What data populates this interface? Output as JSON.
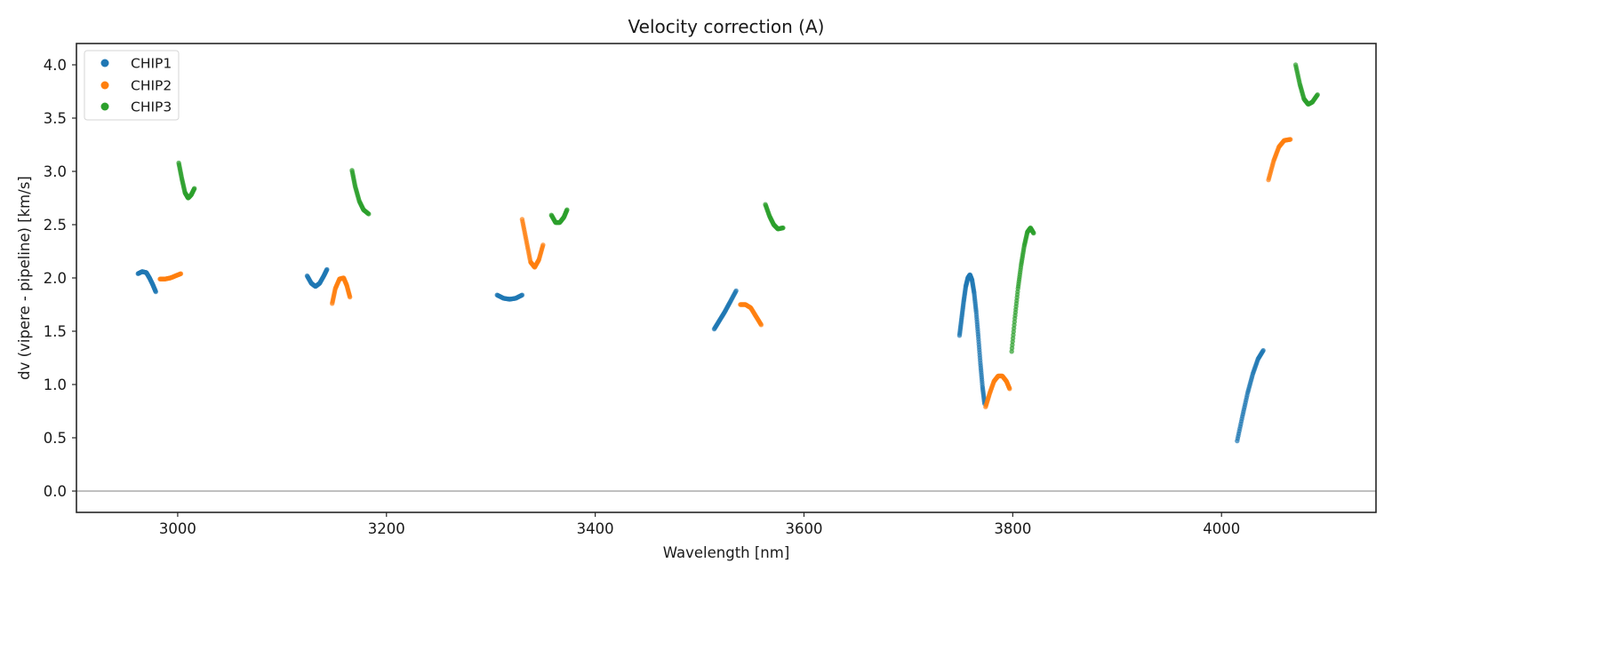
{
  "chart_data": {
    "type": "scatter",
    "title": "Velocity correction (A)",
    "xlabel": "Wavelength [nm]",
    "ylabel": "dv (vipere - pipeline) [km/s]",
    "xlim": [
      2903,
      4148
    ],
    "ylim": [
      -0.2,
      4.2
    ],
    "xticks": [
      3000,
      3200,
      3400,
      3600,
      3800,
      4000
    ],
    "xtick_labels": [
      "3000",
      "3200",
      "3400",
      "3600",
      "3800",
      "4000"
    ],
    "yticks": [
      0.0,
      0.5,
      1.0,
      1.5,
      2.0,
      2.5,
      3.0,
      3.5,
      4.0
    ],
    "ytick_labels": [
      "0.0",
      "0.5",
      "1.0",
      "1.5",
      "2.0",
      "2.5",
      "3.0",
      "3.5",
      "4.0"
    ],
    "grid": false,
    "reference_line_y": 0.0,
    "legend": {
      "placement": "upper-left",
      "entries": [
        "CHIP1",
        "CHIP2",
        "CHIP3"
      ]
    },
    "series": [
      {
        "name": "CHIP1",
        "color": "#1f77b4",
        "segments": [
          {
            "x": [
              2962,
              2966,
              2970,
              2973,
              2976,
              2979
            ],
            "y": [
              2.04,
              2.06,
              2.05,
              2.0,
              1.94,
              1.87
            ]
          },
          {
            "x": [
              3124,
              3128,
              3132,
              3136,
              3140,
              3143
            ],
            "y": [
              2.02,
              1.95,
              1.92,
              1.95,
              2.02,
              2.08
            ]
          },
          {
            "x": [
              3306,
              3312,
              3318,
              3324,
              3330
            ],
            "y": [
              1.84,
              1.81,
              1.8,
              1.81,
              1.84
            ]
          },
          {
            "x": [
              3514,
              3519,
              3524,
              3529,
              3535
            ],
            "y": [
              1.52,
              1.6,
              1.68,
              1.77,
              1.88
            ]
          },
          {
            "x": [
              3749,
              3751,
              3753,
              3755,
              3757,
              3759,
              3761,
              3763,
              3765,
              3767,
              3769,
              3771,
              3773
            ],
            "y": [
              1.46,
              1.62,
              1.78,
              1.92,
              2.0,
              2.03,
              1.98,
              1.86,
              1.68,
              1.45,
              1.2,
              0.98,
              0.82
            ]
          },
          {
            "x": [
              4015,
              4020,
              4025,
              4030,
              4035,
              4040
            ],
            "y": [
              0.47,
              0.7,
              0.92,
              1.1,
              1.24,
              1.32
            ]
          }
        ]
      },
      {
        "name": "CHIP2",
        "color": "#ff7f0e",
        "segments": [
          {
            "x": [
              2983,
              2988,
              2993,
              2998,
              3003
            ],
            "y": [
              1.99,
              1.99,
              2.0,
              2.02,
              2.04
            ]
          },
          {
            "x": [
              3148,
              3151,
              3155,
              3159,
              3162,
              3165
            ],
            "y": [
              1.76,
              1.9,
              1.99,
              2.0,
              1.93,
              1.82
            ]
          },
          {
            "x": [
              3330,
              3334,
              3338,
              3342,
              3346,
              3350
            ],
            "y": [
              2.55,
              2.35,
              2.15,
              2.1,
              2.17,
              2.31
            ]
          },
          {
            "x": [
              3539,
              3544,
              3549,
              3554,
              3559
            ],
            "y": [
              1.75,
              1.75,
              1.72,
              1.64,
              1.56
            ]
          },
          {
            "x": [
              3774,
              3778,
              3782,
              3786,
              3790,
              3794,
              3797
            ],
            "y": [
              0.79,
              0.92,
              1.03,
              1.08,
              1.08,
              1.03,
              0.96
            ]
          },
          {
            "x": [
              4045,
              4050,
              4055,
              4060,
              4066
            ],
            "y": [
              2.92,
              3.1,
              3.23,
              3.29,
              3.3
            ]
          }
        ]
      },
      {
        "name": "CHIP3",
        "color": "#2ca02c",
        "segments": [
          {
            "x": [
              3001,
              3004,
              3007,
              3010,
              3013,
              3016
            ],
            "y": [
              3.08,
              2.93,
              2.8,
              2.75,
              2.78,
              2.84
            ]
          },
          {
            "x": [
              3167,
              3170,
              3174,
              3178,
              3183
            ],
            "y": [
              3.01,
              2.86,
              2.72,
              2.64,
              2.6
            ]
          },
          {
            "x": [
              3358,
              3362,
              3366,
              3370,
              3373
            ],
            "y": [
              2.59,
              2.52,
              2.52,
              2.57,
              2.64
            ]
          },
          {
            "x": [
              3563,
              3567,
              3571,
              3575,
              3580
            ],
            "y": [
              2.69,
              2.58,
              2.5,
              2.46,
              2.47
            ]
          },
          {
            "x": [
              3799,
              3802,
              3805,
              3808,
              3811,
              3814,
              3817,
              3820
            ],
            "y": [
              1.31,
              1.62,
              1.9,
              2.12,
              2.3,
              2.43,
              2.47,
              2.42
            ]
          },
          {
            "x": [
              4071,
              4075,
              4079,
              4083,
              4087,
              4092
            ],
            "y": [
              4.0,
              3.82,
              3.68,
              3.63,
              3.65,
              3.72
            ]
          }
        ]
      }
    ]
  }
}
